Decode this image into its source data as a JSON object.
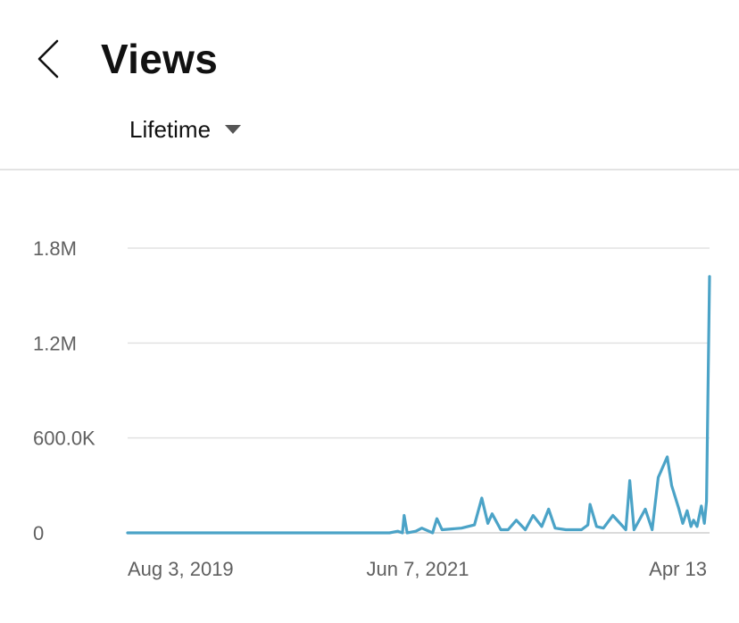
{
  "header": {
    "title": "Views",
    "back_icon": "chevron-left-icon",
    "range_label": "Lifetime",
    "range_icon": "caret-down-icon"
  },
  "chart_data": {
    "type": "line",
    "title": "",
    "xlabel": "",
    "ylabel": "",
    "ylim": [
      0,
      1800000
    ],
    "y_ticks": [
      {
        "value": 0,
        "label": "0"
      },
      {
        "value": 600000,
        "label": "600.0K"
      },
      {
        "value": 1200000,
        "label": "1.2M"
      },
      {
        "value": 1800000,
        "label": "1.8M"
      }
    ],
    "x_ticks": [
      "Aug 3, 2019",
      "Jun 7, 2021",
      "Apr 13"
    ],
    "grid": true,
    "line_color": "#4ba3c7",
    "series": [
      {
        "x": [
          "2019-08-03",
          "2020-06-01",
          "2021-01-01",
          "2021-02-15",
          "2021-04-01",
          "2021-04-20",
          "2021-05-01",
          "2021-05-05",
          "2021-05-12",
          "2021-06-01",
          "2021-06-15",
          "2021-07-10",
          "2021-07-20",
          "2021-08-01",
          "2021-09-15",
          "2021-10-15",
          "2021-11-01",
          "2021-11-15",
          "2021-11-25",
          "2021-12-15",
          "2022-01-01",
          "2022-01-20",
          "2022-02-10",
          "2022-02-28",
          "2022-03-20",
          "2022-04-05",
          "2022-04-20",
          "2022-05-15",
          "2022-06-01",
          "2022-06-20",
          "2022-07-05",
          "2022-07-10",
          "2022-07-25",
          "2022-08-10",
          "2022-09-01",
          "2022-10-01",
          "2022-10-10",
          "2022-10-20",
          "2022-11-15",
          "2022-12-01",
          "2022-12-15",
          "2023-01-05",
          "2023-01-15",
          "2023-02-01",
          "2023-02-10",
          "2023-02-20",
          "2023-03-01",
          "2023-03-07",
          "2023-03-15",
          "2023-03-25",
          "2023-04-01",
          "2023-04-06",
          "2023-04-13"
        ],
        "y": [
          0,
          0,
          0,
          0,
          0,
          10000,
          0,
          110000,
          0,
          10000,
          30000,
          0,
          90000,
          20000,
          30000,
          50000,
          220000,
          60000,
          120000,
          20000,
          20000,
          80000,
          20000,
          110000,
          40000,
          150000,
          30000,
          20000,
          20000,
          20000,
          50000,
          180000,
          40000,
          30000,
          110000,
          20000,
          330000,
          20000,
          150000,
          20000,
          350000,
          480000,
          300000,
          150000,
          60000,
          140000,
          40000,
          80000,
          40000,
          170000,
          60000,
          200000,
          1620000
        ]
      }
    ]
  }
}
